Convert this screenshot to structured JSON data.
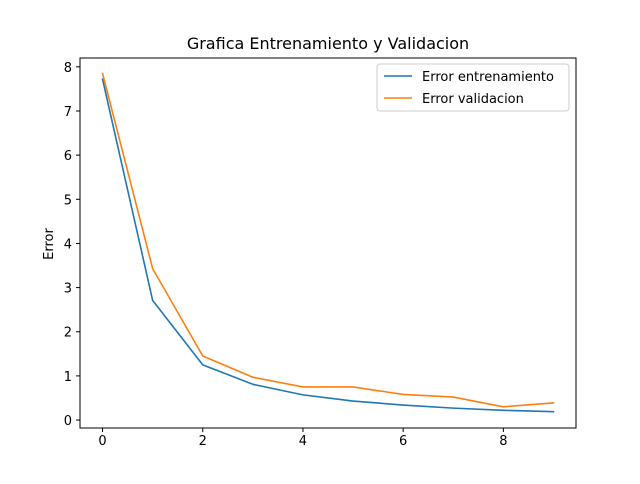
{
  "chart_data": {
    "type": "line",
    "title": "Grafica Entrenamiento y Validacion",
    "xlabel": "",
    "ylabel": "Error",
    "x": [
      0,
      1,
      2,
      3,
      4,
      5,
      6,
      7,
      8,
      9
    ],
    "xlim": [
      -0.45,
      9.45
    ],
    "ylim": [
      -0.18,
      8.2
    ],
    "xticks": [
      0,
      2,
      4,
      6,
      8
    ],
    "yticks": [
      0,
      1,
      2,
      3,
      4,
      5,
      6,
      7,
      8
    ],
    "grid": false,
    "legend_position": "top-right",
    "series": [
      {
        "name": "Error entrenamiento",
        "color": "#1f77b4",
        "values": [
          7.72,
          2.71,
          1.25,
          0.81,
          0.57,
          0.43,
          0.34,
          0.27,
          0.22,
          0.19
        ]
      },
      {
        "name": "Error validacion",
        "color": "#ff7f0e",
        "values": [
          7.85,
          3.43,
          1.45,
          0.97,
          0.75,
          0.75,
          0.58,
          0.52,
          0.3,
          0.39
        ]
      }
    ]
  }
}
